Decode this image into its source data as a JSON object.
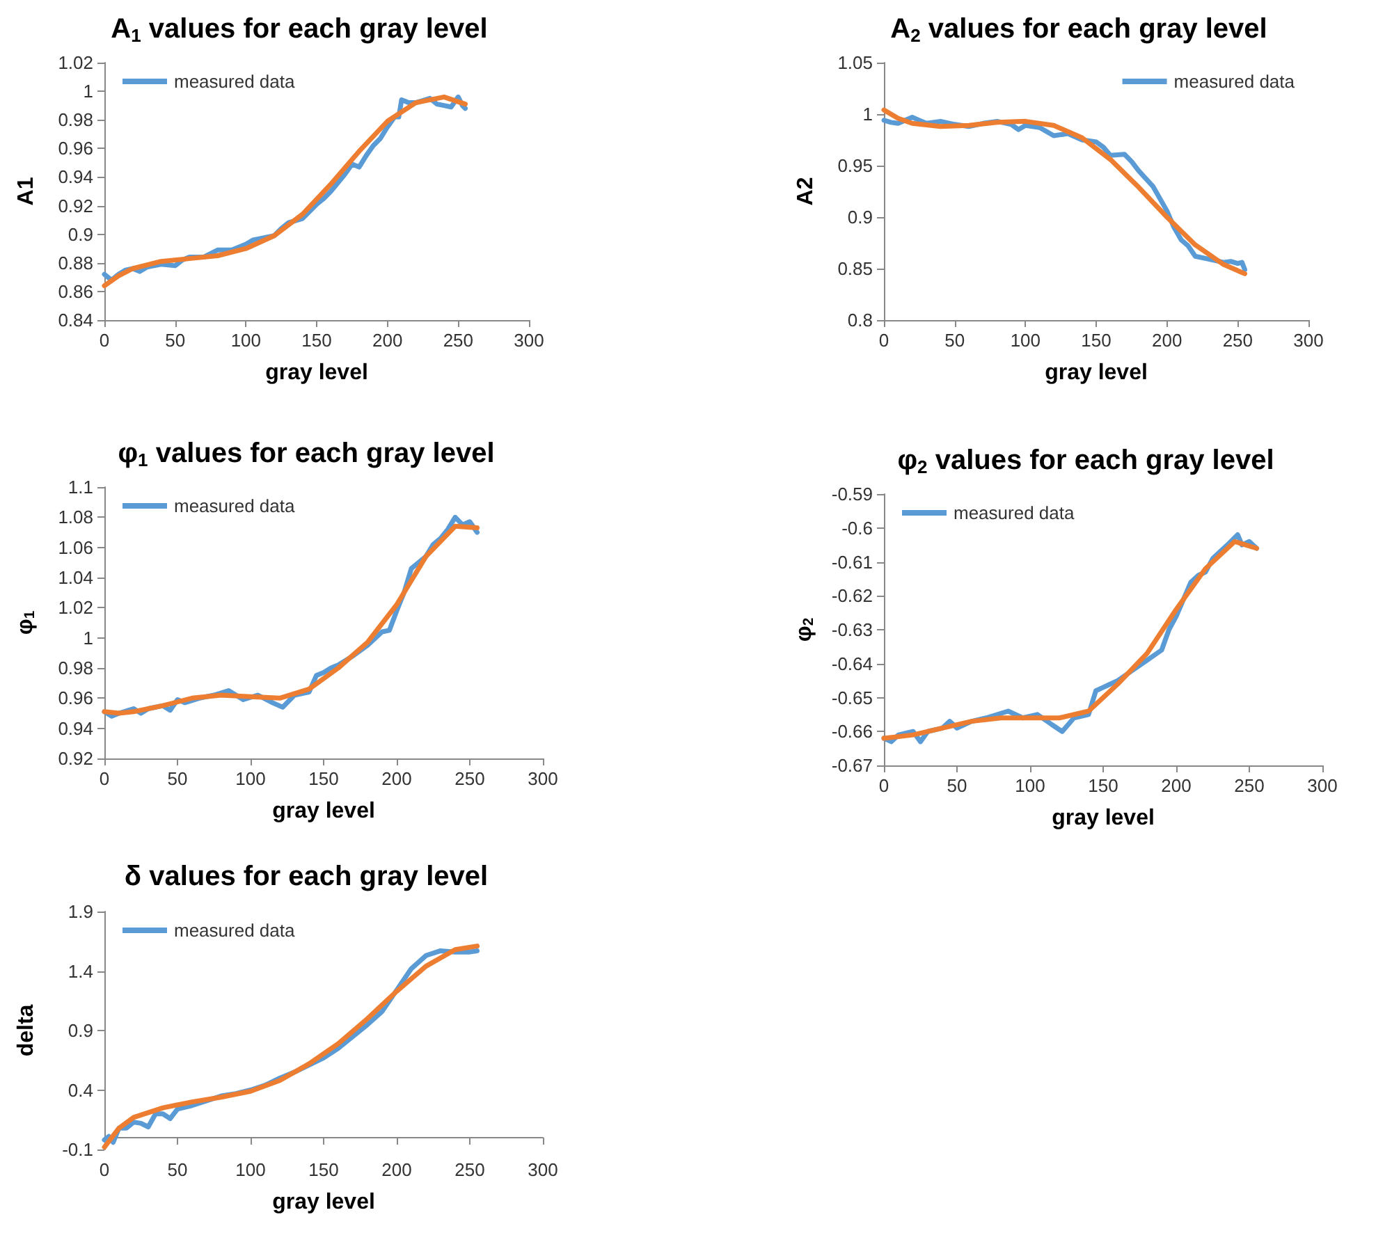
{
  "chart_data": [
    {
      "type": "line",
      "title": "A$_{1}$ values for each gray level",
      "xlabel": "gray level",
      "ylabel": "A1",
      "xlim": [
        0,
        300
      ],
      "xticks": [
        0,
        50,
        100,
        150,
        200,
        250,
        300
      ],
      "ylim": [
        0.84,
        1.02
      ],
      "yticks": [
        0.84,
        0.86,
        0.88,
        0.9,
        0.92,
        0.94,
        0.96,
        0.98,
        1,
        1.02
      ],
      "legend": "top left",
      "marker": "none",
      "series": [
        {
          "name": "measured data",
          "color": "#5b9bd5",
          "x": [
            0,
            5,
            10,
            15,
            20,
            25,
            30,
            40,
            50,
            55,
            60,
            70,
            80,
            90,
            100,
            105,
            110,
            120,
            125,
            130,
            140,
            150,
            155,
            160,
            170,
            175,
            180,
            185,
            190,
            195,
            200,
            205,
            208,
            210,
            215,
            220,
            230,
            235,
            240,
            245,
            250,
            253,
            255
          ],
          "values": [
            0.872,
            0.868,
            0.872,
            0.875,
            0.876,
            0.874,
            0.877,
            0.879,
            0.878,
            0.882,
            0.884,
            0.884,
            0.889,
            0.889,
            0.893,
            0.896,
            0.897,
            0.899,
            0.904,
            0.908,
            0.911,
            0.921,
            0.925,
            0.93,
            0.942,
            0.949,
            0.947,
            0.955,
            0.962,
            0.967,
            0.975,
            0.982,
            0.982,
            0.994,
            0.992,
            0.992,
            0.995,
            0.991,
            0.99,
            0.989,
            0.996,
            0.99,
            0.988
          ]
        },
        {
          "color": "#ed7d31",
          "x": [
            0,
            10,
            20,
            40,
            60,
            80,
            100,
            120,
            140,
            160,
            180,
            200,
            220,
            240,
            255
          ],
          "values": [
            0.864,
            0.871,
            0.876,
            0.881,
            0.883,
            0.885,
            0.89,
            0.899,
            0.914,
            0.935,
            0.958,
            0.979,
            0.992,
            0.996,
            0.991
          ]
        }
      ]
    },
    {
      "type": "line",
      "title": "A$_{2}$ values for each gray level",
      "xlabel": "gray level",
      "ylabel": "A2",
      "xlim": [
        0,
        300
      ],
      "xticks": [
        0,
        50,
        100,
        150,
        200,
        250,
        300
      ],
      "ylim": [
        0.8,
        1.05
      ],
      "yticks": [
        0.8,
        0.85,
        0.9,
        0.95,
        1,
        1.05
      ],
      "legend": "top right",
      "marker": "none",
      "series": [
        {
          "name": "measured data",
          "color": "#5b9bd5",
          "x": [
            0,
            5,
            10,
            20,
            25,
            30,
            40,
            50,
            60,
            70,
            80,
            90,
            95,
            100,
            110,
            120,
            130,
            140,
            150,
            155,
            160,
            170,
            175,
            180,
            190,
            200,
            205,
            210,
            215,
            220,
            230,
            240,
            245,
            250,
            253,
            255
          ],
          "values": [
            0.994,
            0.992,
            0.991,
            0.997,
            0.994,
            0.991,
            0.993,
            0.99,
            0.988,
            0.991,
            0.993,
            0.99,
            0.985,
            0.989,
            0.987,
            0.979,
            0.981,
            0.975,
            0.973,
            0.968,
            0.96,
            0.961,
            0.954,
            0.945,
            0.93,
            0.906,
            0.89,
            0.878,
            0.872,
            0.862,
            0.859,
            0.856,
            0.857,
            0.855,
            0.856,
            0.849
          ]
        },
        {
          "color": "#ed7d31",
          "x": [
            0,
            10,
            20,
            40,
            60,
            80,
            100,
            120,
            140,
            160,
            180,
            200,
            220,
            240,
            255
          ],
          "values": [
            1.004,
            0.996,
            0.991,
            0.988,
            0.989,
            0.992,
            0.993,
            0.989,
            0.977,
            0.956,
            0.929,
            0.9,
            0.873,
            0.854,
            0.845
          ]
        }
      ]
    },
    {
      "type": "line",
      "title": "φ$_{1}$ values for each gray level",
      "xlabel": "gray level",
      "ylabel": "φ$_{1}$",
      "xlim": [
        0,
        300
      ],
      "xticks": [
        0,
        50,
        100,
        150,
        200,
        250,
        300
      ],
      "ylim": [
        0.92,
        1.1
      ],
      "yticks": [
        0.92,
        0.94,
        0.96,
        0.98,
        1,
        1.02,
        1.04,
        1.06,
        1.08,
        1.1
      ],
      "legend": "top left",
      "marker": "none",
      "series": [
        {
          "name": "measured data",
          "color": "#5b9bd5",
          "x": [
            0,
            5,
            10,
            20,
            25,
            30,
            40,
            45,
            50,
            55,
            65,
            75,
            85,
            95,
            105,
            115,
            122,
            130,
            140,
            145,
            150,
            155,
            160,
            170,
            180,
            190,
            195,
            200,
            205,
            210,
            215,
            220,
            225,
            230,
            235,
            240,
            245,
            250,
            255
          ],
          "values": [
            0.951,
            0.948,
            0.95,
            0.953,
            0.95,
            0.953,
            0.955,
            0.952,
            0.959,
            0.957,
            0.96,
            0.962,
            0.965,
            0.959,
            0.962,
            0.957,
            0.954,
            0.962,
            0.964,
            0.975,
            0.977,
            0.98,
            0.982,
            0.988,
            0.995,
            1.004,
            1.005,
            1.018,
            1.03,
            1.046,
            1.05,
            1.054,
            1.062,
            1.066,
            1.072,
            1.08,
            1.075,
            1.077,
            1.07
          ]
        },
        {
          "color": "#ed7d31",
          "x": [
            0,
            10,
            20,
            40,
            60,
            80,
            100,
            120,
            140,
            160,
            180,
            200,
            220,
            240,
            255
          ],
          "values": [
            0.951,
            0.95,
            0.951,
            0.955,
            0.96,
            0.962,
            0.961,
            0.96,
            0.966,
            0.98,
            0.997,
            1.022,
            1.054,
            1.074,
            1.073
          ]
        }
      ]
    },
    {
      "type": "line",
      "title": "φ$_{2}$ values for each gray level",
      "xlabel": "gray level",
      "ylabel": "φ$_{2}$",
      "xlim": [
        0,
        300
      ],
      "xticks": [
        0,
        50,
        100,
        150,
        200,
        250,
        300
      ],
      "ylim": [
        -0.67,
        -0.59
      ],
      "yticks": [
        -0.67,
        -0.66,
        -0.65,
        -0.64,
        -0.63,
        -0.62,
        -0.61,
        -0.6,
        -0.59
      ],
      "legend": "top left",
      "marker": "none",
      "series": [
        {
          "name": "measured data",
          "color": "#5b9bd5",
          "x": [
            0,
            5,
            10,
            20,
            25,
            30,
            40,
            45,
            50,
            60,
            70,
            85,
            95,
            105,
            115,
            122,
            130,
            140,
            145,
            150,
            155,
            160,
            170,
            180,
            190,
            195,
            200,
            205,
            210,
            215,
            220,
            225,
            230,
            235,
            242,
            245,
            250,
            255
          ],
          "values": [
            -0.662,
            -0.663,
            -0.661,
            -0.66,
            -0.663,
            -0.66,
            -0.659,
            -0.657,
            -0.659,
            -0.657,
            -0.656,
            -0.654,
            -0.656,
            -0.655,
            -0.658,
            -0.66,
            -0.656,
            -0.655,
            -0.648,
            -0.647,
            -0.646,
            -0.645,
            -0.642,
            -0.639,
            -0.636,
            -0.63,
            -0.626,
            -0.621,
            -0.616,
            -0.614,
            -0.613,
            -0.609,
            -0.607,
            -0.605,
            -0.602,
            -0.605,
            -0.604,
            -0.606
          ]
        },
        {
          "color": "#ed7d31",
          "x": [
            0,
            20,
            40,
            60,
            80,
            100,
            120,
            140,
            160,
            180,
            200,
            220,
            240,
            255
          ],
          "values": [
            -0.662,
            -0.661,
            -0.659,
            -0.657,
            -0.656,
            -0.656,
            -0.656,
            -0.654,
            -0.646,
            -0.637,
            -0.624,
            -0.612,
            -0.604,
            -0.606
          ]
        }
      ]
    },
    {
      "type": "line",
      "title": "δ values for each gray level",
      "xlabel": "gray level",
      "ylabel": "delta",
      "xlim": [
        0,
        300
      ],
      "xticks": [
        0,
        50,
        100,
        150,
        200,
        250,
        300
      ],
      "ylim": [
        -0.1,
        1.9
      ],
      "yticks": [
        -0.1,
        0.4,
        0.9,
        1.4,
        1.9
      ],
      "legend": "top left",
      "marker": "none",
      "series": [
        {
          "name": "measured data",
          "color": "#5b9bd5",
          "x": [
            0,
            3,
            6,
            10,
            15,
            20,
            25,
            30,
            35,
            40,
            45,
            50,
            60,
            70,
            80,
            90,
            100,
            110,
            120,
            130,
            140,
            150,
            160,
            170,
            180,
            190,
            200,
            210,
            220,
            230,
            240,
            250,
            255
          ],
          "values": [
            -0.02,
            0.01,
            -0.04,
            0.08,
            0.08,
            0.13,
            0.12,
            0.09,
            0.2,
            0.2,
            0.16,
            0.24,
            0.27,
            0.31,
            0.35,
            0.37,
            0.4,
            0.44,
            0.5,
            0.55,
            0.61,
            0.67,
            0.75,
            0.85,
            0.95,
            1.06,
            1.24,
            1.42,
            1.53,
            1.57,
            1.56,
            1.56,
            1.57
          ]
        },
        {
          "color": "#ed7d31",
          "x": [
            0,
            10,
            20,
            40,
            60,
            80,
            100,
            120,
            140,
            160,
            180,
            200,
            220,
            240,
            255
          ],
          "values": [
            -0.08,
            0.08,
            0.17,
            0.25,
            0.3,
            0.34,
            0.39,
            0.48,
            0.62,
            0.79,
            1,
            1.23,
            1.44,
            1.58,
            1.61
          ]
        }
      ]
    }
  ]
}
